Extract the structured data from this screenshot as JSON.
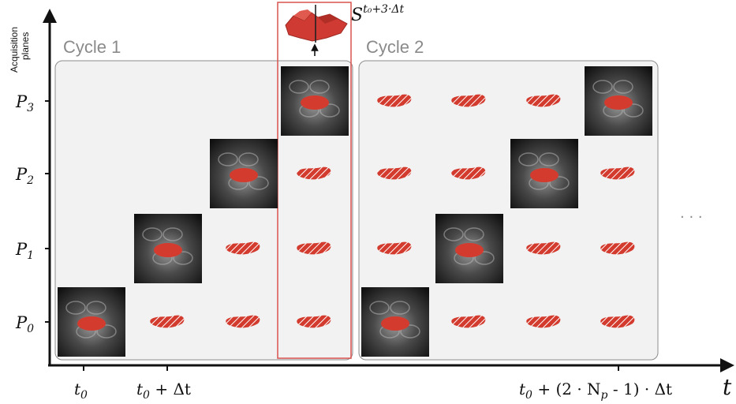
{
  "axis": {
    "y_label_line1": "Acquisition",
    "y_label_line2": "planes",
    "x_var": "t"
  },
  "cycles": [
    {
      "label": "Cycle 1"
    },
    {
      "label": "Cycle 2"
    }
  ],
  "planes": [
    {
      "base": "P",
      "sub": "3"
    },
    {
      "base": "P",
      "sub": "2"
    },
    {
      "base": "P",
      "sub": "1"
    },
    {
      "base": "P",
      "sub": "0"
    }
  ],
  "ticks": [
    {
      "parts": [
        [
          "t",
          ""
        ],
        [
          "0",
          "sub"
        ]
      ]
    },
    {
      "parts": [
        [
          "t",
          ""
        ],
        [
          "0",
          "sub"
        ],
        [
          " + Δt",
          ""
        ]
      ]
    },
    {
      "parts": [
        [
          "t",
          ""
        ],
        [
          "0",
          "sub"
        ],
        [
          " + (2 · N",
          ""
        ],
        [
          "p",
          "sub"
        ],
        [
          " - 1) · Δt",
          ""
        ]
      ]
    }
  ],
  "surface_label": {
    "base": "S",
    "sup": "t₀+3·Δt"
  },
  "ellipsis": "· · ·",
  "colors": {
    "segmentation": "#d23b2e",
    "panel_bg": "#f2f2f2",
    "panel_border": "#8c8c8c",
    "highlight": "#d9534f"
  }
}
